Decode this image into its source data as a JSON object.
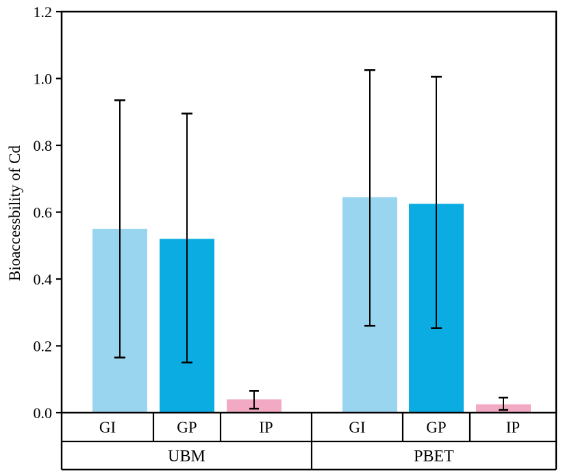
{
  "figure": {
    "background": "#ffffff",
    "axis_color": "#000000",
    "text_color": "#000000"
  },
  "chart_data": {
    "type": "bar",
    "title": "",
    "xlabel": "",
    "ylabel": "Bioaccessbility of Cd",
    "ylim": [
      0.0,
      1.2
    ],
    "yticks": [
      0.0,
      0.2,
      0.4,
      0.6,
      0.8,
      1.0,
      1.2
    ],
    "ytick_decimals": 1,
    "grid": false,
    "legend": false,
    "error_bars": true,
    "categories": [
      "GI",
      "GP",
      "IP"
    ],
    "category_colors": {
      "GI": "#9AD5EF",
      "GP": "#0BACE1",
      "IP": "#F2A9C4"
    },
    "groups": [
      {
        "label": "UBM",
        "bars": [
          {
            "category": "GI",
            "value": 0.55,
            "error_low": 0.165,
            "error_high": 0.935
          },
          {
            "category": "GP",
            "value": 0.52,
            "error_low": 0.15,
            "error_high": 0.895
          },
          {
            "category": "IP",
            "value": 0.04,
            "error_low": 0.012,
            "error_high": 0.065
          }
        ]
      },
      {
        "label": "PBET",
        "bars": [
          {
            "category": "GI",
            "value": 0.645,
            "error_low": 0.26,
            "error_high": 1.025
          },
          {
            "category": "GP",
            "value": 0.625,
            "error_low": 0.253,
            "error_high": 1.005
          },
          {
            "category": "IP",
            "value": 0.025,
            "error_low": 0.008,
            "error_high": 0.045
          }
        ]
      }
    ]
  }
}
